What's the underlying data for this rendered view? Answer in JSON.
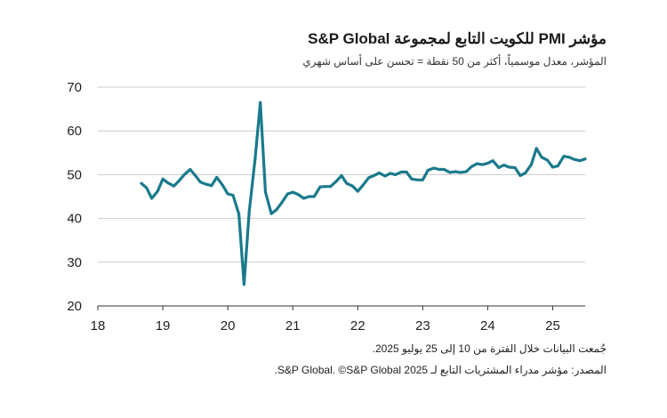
{
  "header": {
    "title": "مؤشر PMI للكويت التابع لمجموعة S&P Global",
    "subtitle": "المؤشر، معدل موسمياً، أكثر من 50 نقطة = تحسن على أساس شهري"
  },
  "footer": {
    "note": "جُمعت البيانات خلال الفترة من 10 إلى 25 يوليو 2025.",
    "source": "المصدر: مؤشر مدراء المشتريات التابع لـ S&P Global. ©S&P Global 2025."
  },
  "chart_data": {
    "type": "line",
    "title": "مؤشر PMI للكويت التابع لمجموعة S&P Global",
    "subtitle": "المؤشر، معدل موسمياً، أكثر من 50 نقطة = تحسن على أساس شهري",
    "xlabel": "",
    "ylabel": "",
    "xlim": [
      18,
      25.5
    ],
    "ylim": [
      20,
      70
    ],
    "x_ticks": [
      {
        "value": 18,
        "label": "18"
      },
      {
        "value": 19,
        "label": "19"
      },
      {
        "value": 20,
        "label": "20"
      },
      {
        "value": 21,
        "label": "21"
      },
      {
        "value": 22,
        "label": "22"
      },
      {
        "value": 23,
        "label": "23"
      },
      {
        "value": 24,
        "label": "24"
      },
      {
        "value": 25,
        "label": "25"
      }
    ],
    "y_ticks": [
      {
        "value": 20,
        "label": "20"
      },
      {
        "value": 30,
        "label": "30"
      },
      {
        "value": 40,
        "label": "40"
      },
      {
        "value": 50,
        "label": "50"
      },
      {
        "value": 60,
        "label": "60"
      },
      {
        "value": 70,
        "label": "70"
      }
    ],
    "grid": {
      "horizontal": true,
      "vertical": false
    },
    "legend": "none",
    "line_color": "#1a7a8c",
    "grid_color": "#cccccc",
    "series": [
      {
        "x": [
          18.67,
          18.75,
          18.83,
          18.92,
          19.0,
          19.08,
          19.17,
          19.25,
          19.33,
          19.42,
          19.5,
          19.58,
          19.67,
          19.75,
          19.83,
          19.92,
          20.0,
          20.08,
          20.17,
          20.25,
          20.33,
          20.42,
          20.5,
          20.58,
          20.67,
          20.75,
          20.83,
          20.92,
          21.0,
          21.08,
          21.17,
          21.25,
          21.33,
          21.42,
          21.5,
          21.58,
          21.67,
          21.75,
          21.83,
          21.92,
          22.0,
          22.08,
          22.17,
          22.25,
          22.33,
          22.42,
          22.5,
          22.58,
          22.67,
          22.75,
          22.83,
          22.92,
          23.0,
          23.08,
          23.17,
          23.25,
          23.33,
          23.42,
          23.5,
          23.58,
          23.67,
          23.75,
          23.83,
          23.92,
          24.0,
          24.08,
          24.17,
          24.25,
          24.33,
          24.42,
          24.5,
          24.58,
          24.67,
          24.75,
          24.83,
          24.92,
          25.0,
          25.08,
          25.17,
          25.25,
          25.33,
          25.42,
          25.5
        ],
        "values": [
          48.0,
          47.0,
          44.6,
          46.2,
          49.0,
          48.1,
          47.4,
          48.6,
          50.0,
          51.2,
          49.8,
          48.3,
          47.8,
          47.5,
          49.4,
          47.6,
          45.6,
          45.3,
          41.0,
          24.9,
          41.5,
          53.5,
          66.5,
          46.0,
          41.1,
          42.0,
          43.6,
          45.6,
          46.0,
          45.5,
          44.6,
          45.0,
          45.0,
          47.2,
          47.3,
          47.3,
          48.5,
          49.8,
          48.0,
          47.4,
          46.2,
          47.6,
          49.3,
          49.8,
          50.4,
          49.7,
          50.3,
          50.0,
          50.6,
          50.6,
          49.0,
          48.8,
          48.8,
          51.0,
          51.5,
          51.2,
          51.2,
          50.5,
          50.7,
          50.5,
          50.7,
          51.8,
          52.5,
          52.3,
          52.6,
          53.2,
          51.6,
          52.2,
          51.7,
          51.6,
          49.8,
          50.4,
          52.3,
          56.0,
          54.0,
          53.3,
          51.7,
          52.0,
          54.2,
          54.0,
          53.5,
          53.2,
          53.6
        ]
      }
    ]
  }
}
